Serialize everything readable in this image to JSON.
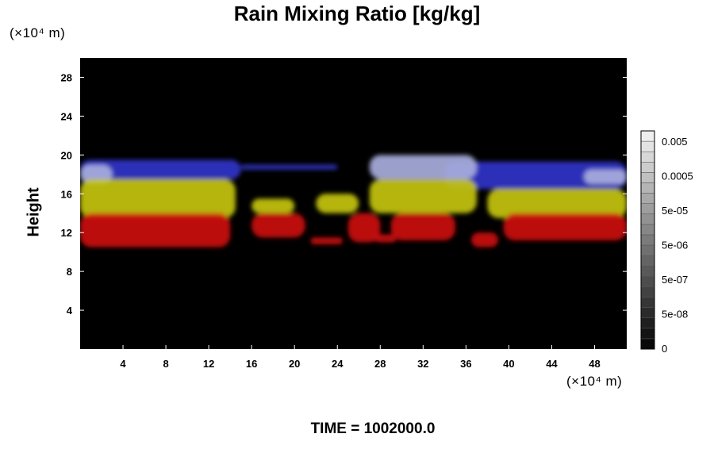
{
  "chart_data": {
    "type": "heatmap",
    "title": "Rain Mixing Ratio [kg/kg]",
    "ylabel": "Height",
    "x_unit": "(×10⁴ m)",
    "y_unit": "(×10⁴ m)",
    "footer": "TIME = 1002000.0",
    "x_ticks": [
      "4",
      "8",
      "12",
      "16",
      "20",
      "24",
      "28",
      "32",
      "36",
      "40",
      "44",
      "48"
    ],
    "y_ticks": [
      "4",
      "8",
      "12",
      "16",
      "20",
      "24",
      "28"
    ],
    "xlim": [
      0,
      51
    ],
    "ylim": [
      0,
      30
    ],
    "colorbar_labels": [
      "0.005",
      "0.0005",
      "5e-05",
      "5e-06",
      "5e-07",
      "5e-08",
      "0"
    ],
    "grid": false,
    "layers": [
      {
        "color": "#3035c8",
        "bands": [
          {
            "x": [
              0,
              15
            ],
            "y": [
              17.5,
              19.5
            ]
          },
          {
            "x": [
              15,
              24
            ],
            "y": [
              18.5,
              19.0
            ]
          },
          {
            "x": [
              34,
              51
            ],
            "y": [
              16.5,
              19.3
            ]
          }
        ]
      },
      {
        "color": "#a8acdc",
        "bands": [
          {
            "x": [
              0,
              3
            ],
            "y": [
              17.0,
              19.0
            ]
          },
          {
            "x": [
              27,
              37
            ],
            "y": [
              17.5,
              20.0
            ]
          },
          {
            "x": [
              47,
              51
            ],
            "y": [
              17.0,
              18.5
            ]
          }
        ]
      },
      {
        "color": "#c4c40e",
        "bands": [
          {
            "x": [
              0,
              14.5
            ],
            "y": [
              13.5,
              17.5
            ]
          },
          {
            "x": [
              16,
              20
            ],
            "y": [
              14.0,
              15.5
            ]
          },
          {
            "x": [
              22,
              26
            ],
            "y": [
              14.0,
              16.0
            ]
          },
          {
            "x": [
              27,
              37
            ],
            "y": [
              14.0,
              17.5
            ]
          },
          {
            "x": [
              38,
              51
            ],
            "y": [
              13.5,
              16.5
            ]
          }
        ]
      },
      {
        "color": "#cc1010",
        "bands": [
          {
            "x": [
              0,
              14
            ],
            "y": [
              10.5,
              14.0
            ]
          },
          {
            "x": [
              16,
              21
            ],
            "y": [
              11.5,
              14.0
            ]
          },
          {
            "x": [
              21.5,
              24.5
            ],
            "y": [
              10.8,
              11.5
            ]
          },
          {
            "x": [
              25,
              28
            ],
            "y": [
              11.0,
              14.0
            ]
          },
          {
            "x": [
              27.5,
              29.5
            ],
            "y": [
              11.0,
              11.8
            ]
          },
          {
            "x": [
              29,
              35
            ],
            "y": [
              11.2,
              14.0
            ]
          },
          {
            "x": [
              36.5,
              39
            ],
            "y": [
              10.5,
              12.0
            ]
          },
          {
            "x": [
              39.5,
              51
            ],
            "y": [
              11.2,
              14.0
            ]
          }
        ]
      }
    ]
  }
}
